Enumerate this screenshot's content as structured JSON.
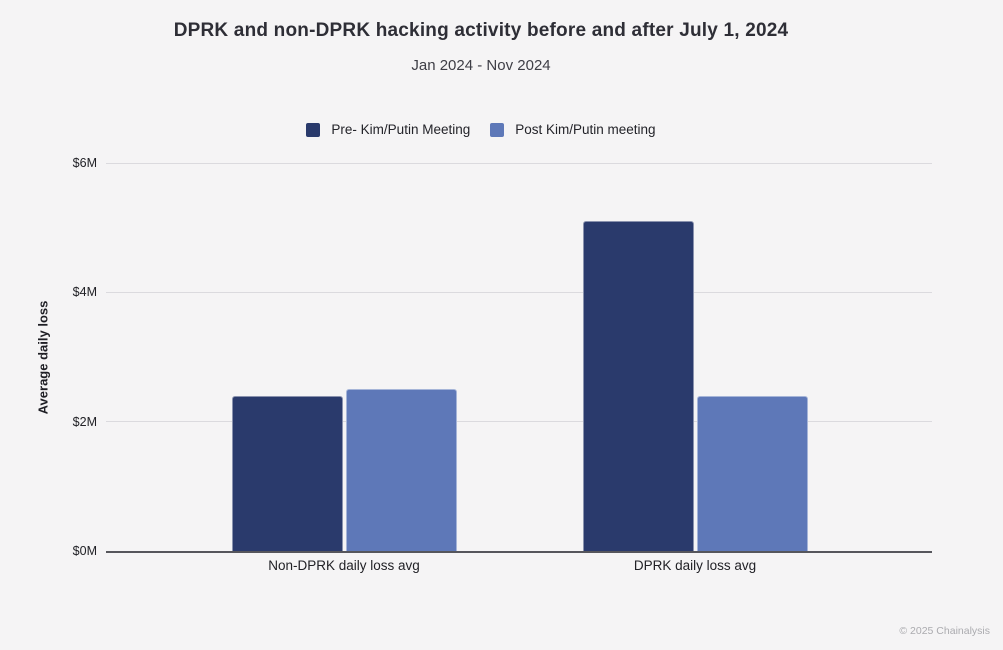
{
  "header": {
    "title": "DPRK and non-DPRK hacking activity before and after July 1, 2024",
    "subtitle": "Jan 2024 - Nov 2024"
  },
  "legend": {
    "items": [
      {
        "label": "Pre- Kim/Putin Meeting",
        "color": "#2a3a6c"
      },
      {
        "label": "Post Kim/Putin meeting",
        "color": "#5e78b8"
      }
    ]
  },
  "chart_data": {
    "type": "bar",
    "title": "DPRK and non-DPRK hacking activity before and after July 1, 2024",
    "subtitle": "Jan 2024 - Nov 2024",
    "categories": [
      "Non-DPRK daily loss avg",
      "DPRK daily loss avg"
    ],
    "series": [
      {
        "name": "Pre- Kim/Putin Meeting",
        "color": "#2a3a6c",
        "values": [
          2.4,
          5.1
        ]
      },
      {
        "name": "Post Kim/Putin meeting",
        "color": "#5e78b8",
        "values": [
          2.5,
          2.4
        ]
      }
    ],
    "ylabel": "Average daily loss",
    "xlabel": "",
    "unit": "USD millions",
    "ylim": [
      0,
      6
    ],
    "yticks": [
      {
        "value": 0,
        "label": "$0M"
      },
      {
        "value": 2,
        "label": "$2M"
      },
      {
        "value": 4,
        "label": "$4M"
      },
      {
        "value": 6,
        "label": "$6M"
      }
    ],
    "grid": "horizontal",
    "legend_position": "top"
  },
  "footer": {
    "copyright": "© 2025 Chainalysis"
  }
}
